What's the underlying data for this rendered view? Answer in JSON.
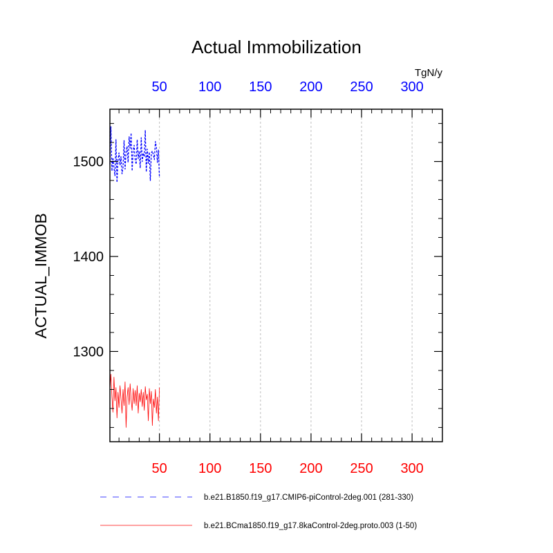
{
  "chart_data": {
    "type": "line",
    "title": "Actual Immobilization",
    "units": "TgN/y",
    "ylabel": "ACTUAL_IMMOB",
    "xlim": [
      1,
      330
    ],
    "ylim": [
      1205,
      1555
    ],
    "x_ticks": [
      50,
      100,
      150,
      200,
      250,
      300
    ],
    "x_tick_labels": [
      "50",
      "100",
      "150",
      "200",
      "250",
      "300"
    ],
    "y_ticks": [
      1300,
      1400,
      1500
    ],
    "y_tick_labels": [
      "1300",
      "1400",
      "1500"
    ],
    "top_axis_color": "#0000ff",
    "bottom_axis_color": "#ff0000",
    "grid": "vertical dotted at major x ticks",
    "series": [
      {
        "name": "b.e21.B1850.f19_g17.CMIP6-piControl-2deg.001 (281-330)",
        "color": "#0000ff",
        "style": "dashed",
        "x": [
          1,
          2,
          3,
          4,
          5,
          6,
          7,
          8,
          9,
          10,
          11,
          12,
          13,
          14,
          15,
          16,
          17,
          18,
          19,
          20,
          21,
          22,
          23,
          24,
          25,
          26,
          27,
          28,
          29,
          30,
          31,
          32,
          33,
          34,
          35,
          36,
          37,
          38,
          39,
          40,
          41,
          42,
          43,
          44,
          45,
          46,
          47,
          48,
          49,
          50
        ],
        "values": [
          1497,
          1537,
          1490,
          1504,
          1493,
          1485,
          1523,
          1478,
          1502,
          1509,
          1496,
          1505,
          1487,
          1494,
          1522,
          1492,
          1510,
          1516,
          1499,
          1526,
          1514,
          1530,
          1490,
          1512,
          1517,
          1502,
          1497,
          1523,
          1503,
          1511,
          1493,
          1525,
          1500,
          1509,
          1505,
          1533,
          1489,
          1513,
          1498,
          1510,
          1480,
          1509,
          1511,
          1507,
          1502,
          1521,
          1515,
          1499,
          1512,
          1483
        ]
      },
      {
        "name": "b.e21.BCma1850.f19_g17.8kaControl-2deg.proto.003 (1-50)",
        "color": "#ff0000",
        "style": "solid",
        "x": [
          1,
          2,
          3,
          4,
          5,
          6,
          7,
          8,
          9,
          10,
          11,
          12,
          13,
          14,
          15,
          16,
          17,
          18,
          19,
          20,
          21,
          22,
          23,
          24,
          25,
          26,
          27,
          28,
          29,
          30,
          31,
          32,
          33,
          34,
          35,
          36,
          37,
          38,
          39,
          40,
          41,
          42,
          43,
          44,
          45,
          46,
          47,
          48,
          49,
          50
        ],
        "values": [
          1260,
          1276,
          1252,
          1236,
          1273,
          1248,
          1262,
          1230,
          1257,
          1241,
          1264,
          1250,
          1235,
          1260,
          1243,
          1268,
          1220,
          1252,
          1262,
          1244,
          1266,
          1249,
          1238,
          1261,
          1245,
          1259,
          1243,
          1264,
          1235,
          1256,
          1247,
          1260,
          1242,
          1257,
          1238,
          1263,
          1249,
          1255,
          1227,
          1261,
          1245,
          1258,
          1222,
          1250,
          1241,
          1260,
          1235,
          1252,
          1227,
          1262
        ]
      }
    ]
  }
}
